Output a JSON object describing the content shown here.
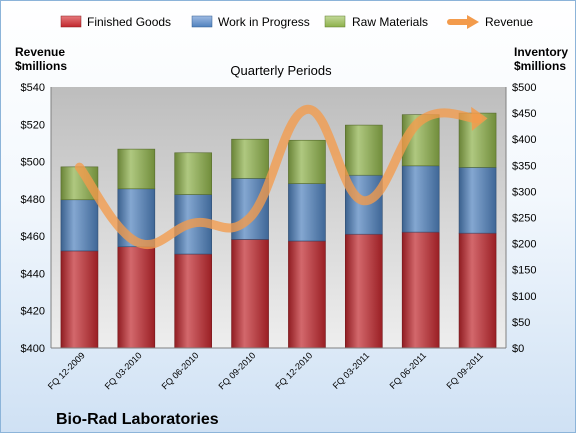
{
  "company": "Bio-Rad Laboratories",
  "chart_data": {
    "type": "bar",
    "subtype": "stacked-bar-with-line",
    "title": "Quarterly Periods",
    "categories": [
      "FQ 12-2009",
      "FQ 03-2010",
      "FQ 06-2010",
      "FQ 09-2010",
      "FQ 12-2010",
      "FQ 03-2011",
      "FQ 06-2011",
      "FQ 09-2011"
    ],
    "left_axis": {
      "label_line1": "Revenue",
      "label_line2": "$millions",
      "range": [
        400,
        540
      ],
      "ticks": [
        "$400",
        "$420",
        "$440",
        "$460",
        "$480",
        "$500",
        "$520",
        "$540"
      ]
    },
    "right_axis": {
      "label_line1": "Inventory",
      "label_line2": "$millions",
      "range": [
        0,
        500
      ],
      "ticks": [
        "$0",
        "$50",
        "$100",
        "$150",
        "$200",
        "$250",
        "$300",
        "$350",
        "$400",
        "$450",
        "$500"
      ]
    },
    "series": [
      {
        "name": "Finished Goods",
        "axis": "right",
        "color": "#c0272d",
        "values": [
          186,
          194,
          180,
          208,
          205,
          218,
          222,
          220
        ]
      },
      {
        "name": "Work in Progress",
        "axis": "right",
        "color": "#4f81bd",
        "values": [
          98,
          111,
          114,
          117,
          110,
          113,
          127,
          126
        ]
      },
      {
        "name": "Raw Materials",
        "axis": "right",
        "color": "#8db04a",
        "values": [
          63,
          76,
          80,
          75,
          83,
          96,
          98,
          104
        ]
      },
      {
        "name": "Revenue",
        "axis": "left",
        "type": "line",
        "color": "#f39b4c",
        "values": [
          497,
          457,
          467,
          470,
          528,
          479,
          522,
          523
        ]
      }
    ],
    "legend": {
      "placement": "top"
    },
    "grid": false
  }
}
